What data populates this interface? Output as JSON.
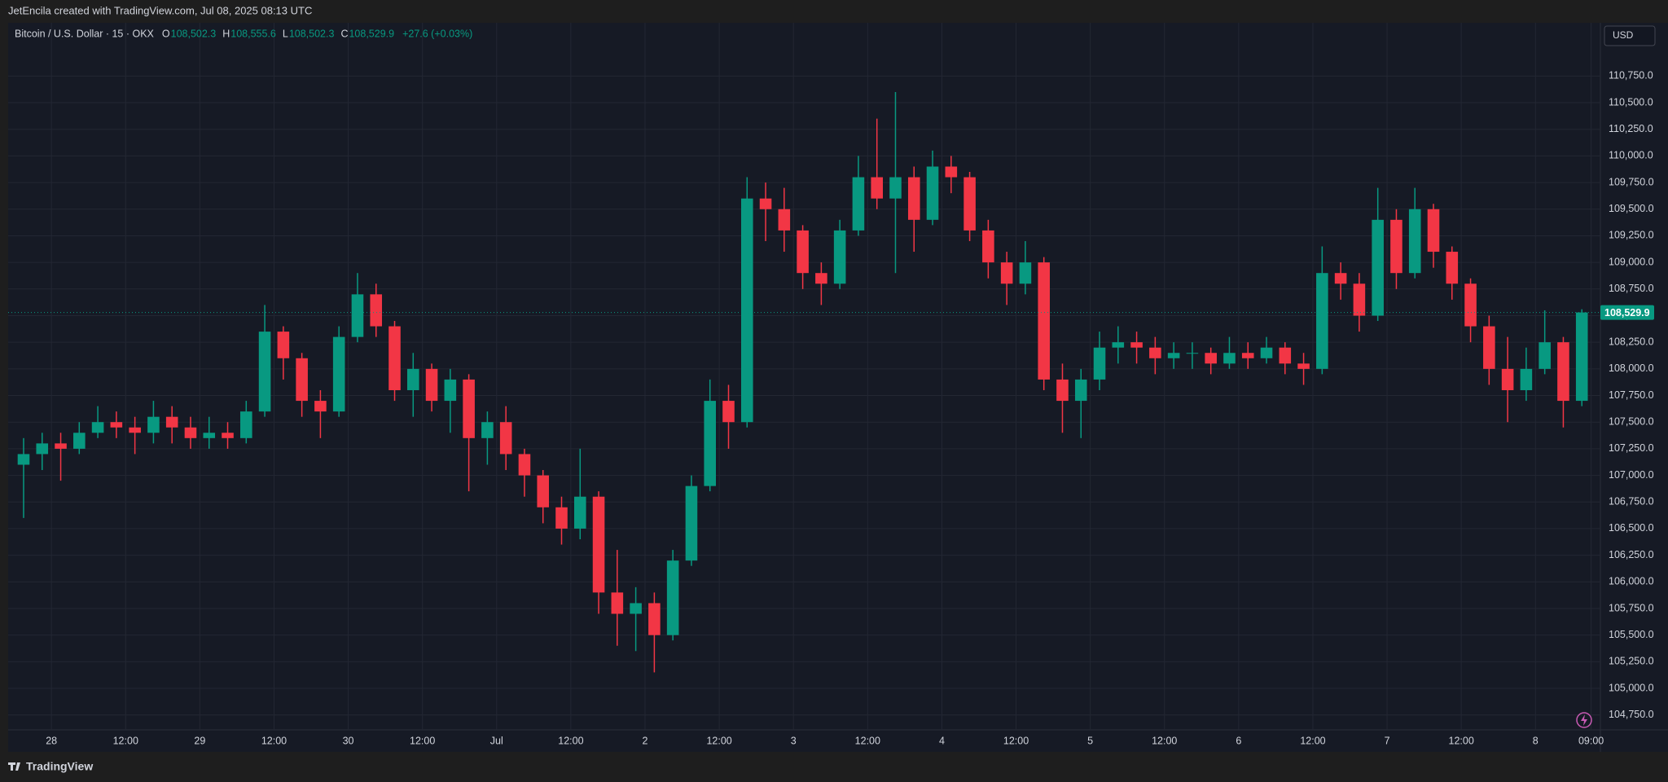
{
  "header": {
    "attribution": "JetEncila created with TradingView.com, Jul 08, 2025 08:13 UTC",
    "currency": "USD",
    "footer": "TradingView"
  },
  "chart_data": {
    "type": "candlestick",
    "title": "Bitcoin / U.S. Dollar · 15 · OKX",
    "legend_ohlc": [
      {
        "key": "O",
        "value": "108,502.3"
      },
      {
        "key": "H",
        "value": "108,555.6"
      },
      {
        "key": "L",
        "value": "108,502.3"
      },
      {
        "key": "C",
        "value": "108,529.9"
      }
    ],
    "change": "+27.6 (+0.03%)",
    "up_color": "#089981",
    "down_color": "#f23645",
    "x": [
      -6,
      -3,
      0,
      3,
      6,
      9,
      12,
      15,
      18,
      21,
      24,
      27,
      30,
      33,
      36,
      39,
      42,
      45,
      48,
      51,
      54,
      57,
      60,
      63,
      66,
      69,
      72,
      75,
      78,
      81,
      84,
      87,
      90,
      93,
      96,
      99,
      102,
      105,
      108,
      111,
      114,
      117,
      120,
      123,
      126,
      129,
      132,
      135,
      138,
      141,
      144,
      147,
      150,
      153,
      156,
      159,
      162,
      165,
      168,
      171,
      174,
      177,
      180,
      183,
      186,
      189,
      192,
      195,
      198,
      201,
      204,
      207,
      210,
      213,
      216,
      219,
      222,
      225,
      228,
      231,
      234,
      237,
      240,
      243,
      246
    ],
    "open": [
      107100,
      107200,
      107300,
      107250,
      107400,
      107500,
      107450,
      107400,
      107550,
      107450,
      107350,
      107400,
      107350,
      107600,
      108350,
      108100,
      107700,
      107600,
      108300,
      108700,
      108400,
      107800,
      108000,
      107700,
      107900,
      107350,
      107500,
      107200,
      107000,
      106700,
      106500,
      106800,
      105900,
      105700,
      105800,
      105500,
      106200,
      106900,
      107700,
      107500,
      109600,
      109500,
      109300,
      108900,
      108800,
      109300,
      109800,
      109600,
      109800,
      109400,
      109900,
      109800,
      109300,
      109000,
      108800,
      109000,
      107900,
      107700,
      107900,
      108200,
      108250,
      108200,
      108100,
      108150,
      108150,
      108050,
      108150,
      108100,
      108200,
      108050,
      108000,
      108900,
      108800,
      108500,
      109400,
      108900,
      109500,
      109100,
      108800,
      108400,
      108000,
      107800,
      108000,
      108250,
      107700
    ],
    "high": [
      107350,
      107400,
      107400,
      107500,
      107650,
      107600,
      107550,
      107700,
      107650,
      107550,
      107550,
      107500,
      107700,
      108600,
      108400,
      108150,
      107800,
      108400,
      108900,
      108800,
      108450,
      108150,
      108050,
      108000,
      107950,
      107600,
      107650,
      107250,
      107050,
      106800,
      107250,
      106850,
      106300,
      105950,
      105900,
      106300,
      107000,
      107900,
      107850,
      109800,
      109750,
      109700,
      109350,
      109000,
      109400,
      110000,
      110350,
      110600,
      109900,
      110050,
      110000,
      109850,
      109400,
      109100,
      109200,
      109050,
      108050,
      108000,
      108350,
      108400,
      108350,
      108300,
      108250,
      108250,
      108200,
      108300,
      108250,
      108300,
      108250,
      108150,
      109150,
      109000,
      108900,
      109700,
      109500,
      109700,
      109550,
      109150,
      108850,
      108500,
      108300,
      108200,
      108550,
      108300,
      108560
    ],
    "low": [
      106600,
      107050,
      106950,
      107200,
      107350,
      107350,
      107200,
      107300,
      107300,
      107250,
      107250,
      107250,
      107300,
      107550,
      107900,
      107550,
      107350,
      107550,
      108250,
      108300,
      107700,
      107550,
      107600,
      107400,
      106850,
      107100,
      107050,
      106800,
      106550,
      106350,
      106400,
      105700,
      105400,
      105350,
      105150,
      105450,
      106150,
      106850,
      107250,
      107450,
      109200,
      109100,
      108750,
      108600,
      108750,
      109250,
      109500,
      108900,
      109100,
      109350,
      109650,
      109200,
      108850,
      108600,
      108700,
      107800,
      107400,
      107350,
      107800,
      108050,
      108050,
      107950,
      108000,
      108000,
      107950,
      108000,
      108000,
      108050,
      107950,
      107850,
      107950,
      108650,
      108350,
      108450,
      108750,
      108850,
      108950,
      108650,
      108250,
      107850,
      107500,
      107700,
      107950,
      107450,
      107650
    ],
    "close": [
      107200,
      107300,
      107250,
      107400,
      107500,
      107450,
      107400,
      107550,
      107450,
      107350,
      107400,
      107350,
      107600,
      108350,
      108100,
      107700,
      107600,
      108300,
      108700,
      108400,
      107800,
      108000,
      107700,
      107900,
      107350,
      107500,
      107200,
      107000,
      106700,
      106500,
      106800,
      105900,
      105700,
      105800,
      105500,
      106200,
      106900,
      107700,
      107500,
      109600,
      109500,
      109300,
      108900,
      108800,
      109300,
      109800,
      109600,
      109800,
      109400,
      109900,
      109800,
      109300,
      109000,
      108800,
      109000,
      107900,
      107700,
      107900,
      108200,
      108250,
      108200,
      108100,
      108150,
      108150,
      108050,
      108150,
      108100,
      108200,
      108050,
      108000,
      108900,
      108800,
      108500,
      109400,
      108900,
      109500,
      109100,
      108800,
      108400,
      108000,
      107800,
      108000,
      108250,
      107700,
      108529.9
    ],
    "last_price": {
      "value": 108529.9,
      "label": "108,529.9"
    },
    "xlim": [
      -7,
      250.5
    ],
    "xticks": [
      {
        "value": 0,
        "label": "28"
      },
      {
        "value": 12,
        "label": "12:00"
      },
      {
        "value": 24,
        "label": "29"
      },
      {
        "value": 36,
        "label": "12:00"
      },
      {
        "value": 48,
        "label": "30"
      },
      {
        "value": 60,
        "label": "12:00"
      },
      {
        "value": 72,
        "label": "Jul"
      },
      {
        "value": 84,
        "label": "12:00"
      },
      {
        "value": 96,
        "label": "2"
      },
      {
        "value": 108,
        "label": "12:00"
      },
      {
        "value": 120,
        "label": "3"
      },
      {
        "value": 132,
        "label": "12:00"
      },
      {
        "value": 144,
        "label": "4"
      },
      {
        "value": 156,
        "label": "12:00"
      },
      {
        "value": 168,
        "label": "5"
      },
      {
        "value": 180,
        "label": "12:00"
      },
      {
        "value": 192,
        "label": "6"
      },
      {
        "value": 204,
        "label": "12:00"
      },
      {
        "value": 216,
        "label": "7"
      },
      {
        "value": 228,
        "label": "12:00"
      },
      {
        "value": 240,
        "label": "8"
      },
      {
        "value": 249,
        "label": "09:00"
      }
    ],
    "ylim": [
      104610,
      111250
    ],
    "yticks": [
      {
        "value": 104750,
        "label": "104,750.0"
      },
      {
        "value": 105000,
        "label": "105,000.0"
      },
      {
        "value": 105250,
        "label": "105,250.0"
      },
      {
        "value": 105500,
        "label": "105,500.0"
      },
      {
        "value": 105750,
        "label": "105,750.0"
      },
      {
        "value": 106000,
        "label": "106,000.0"
      },
      {
        "value": 106250,
        "label": "106,250.0"
      },
      {
        "value": 106500,
        "label": "106,500.0"
      },
      {
        "value": 106750,
        "label": "106,750.0"
      },
      {
        "value": 107000,
        "label": "107,000.0"
      },
      {
        "value": 107250,
        "label": "107,250.0"
      },
      {
        "value": 107500,
        "label": "107,500.0"
      },
      {
        "value": 107750,
        "label": "107,750.0"
      },
      {
        "value": 108000,
        "label": "108,000.0"
      },
      {
        "value": 108250,
        "label": "108,250.0"
      },
      {
        "value": 108500,
        "label": "108,500.0"
      },
      {
        "value": 108750,
        "label": "108,750.0"
      },
      {
        "value": 109000,
        "label": "109,000.0"
      },
      {
        "value": 109250,
        "label": "109,250.0"
      },
      {
        "value": 109500,
        "label": "109,500.0"
      },
      {
        "value": 109750,
        "label": "109,750.0"
      },
      {
        "value": 110000,
        "label": "110,000.0"
      },
      {
        "value": 110250,
        "label": "110,250.0"
      },
      {
        "value": 110500,
        "label": "110,500.0"
      },
      {
        "value": 110750,
        "label": "110,750.0"
      }
    ],
    "grid": true
  }
}
